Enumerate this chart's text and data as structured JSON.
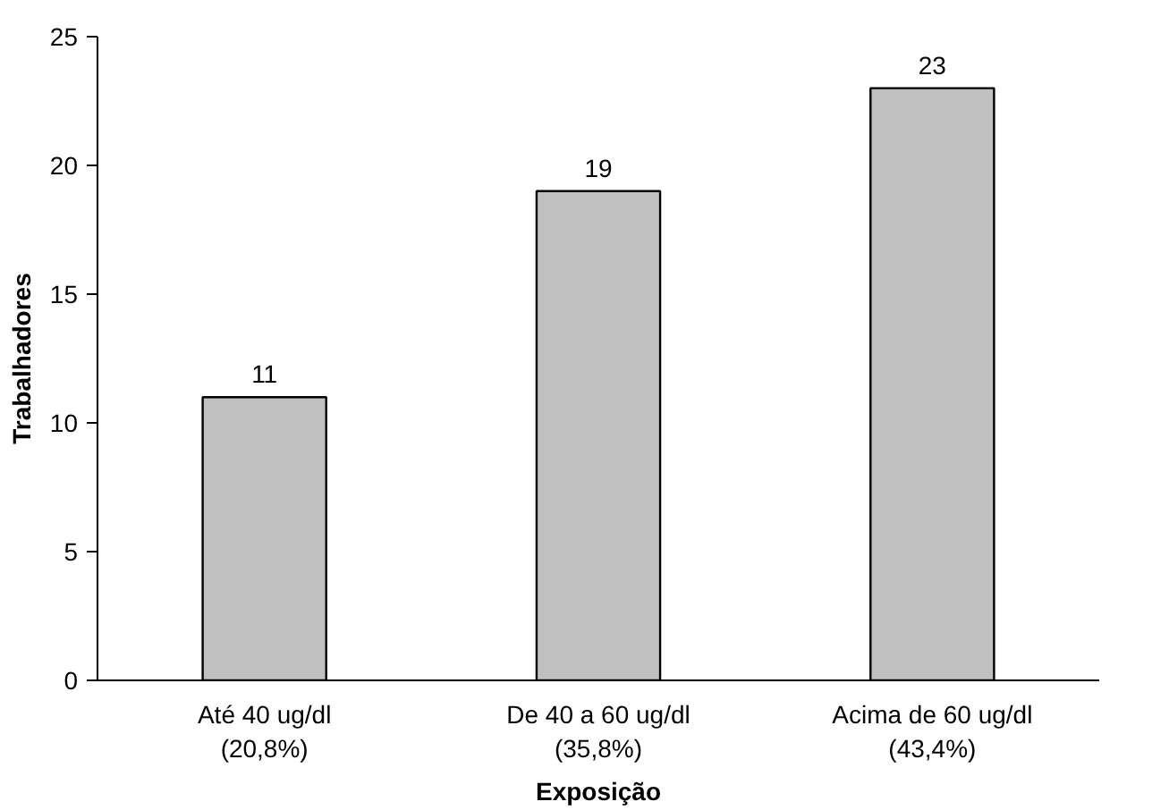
{
  "chart_data": {
    "type": "bar",
    "xlabel": "Exposição",
    "ylabel": "Trabalhadores",
    "categories": [
      "Até 40 ug/dl\n(20,8%)",
      "De 40 a 60 ug/dl\n(35,8%)",
      "Acima de 60 ug/dl\n(43,4%)"
    ],
    "values": [
      11,
      19,
      23
    ],
    "color": "#c0c0c0",
    "ylim": [
      0,
      25
    ],
    "yticks": [
      0,
      5,
      10,
      15,
      20,
      25
    ],
    "data_labels": true,
    "grid": false
  }
}
